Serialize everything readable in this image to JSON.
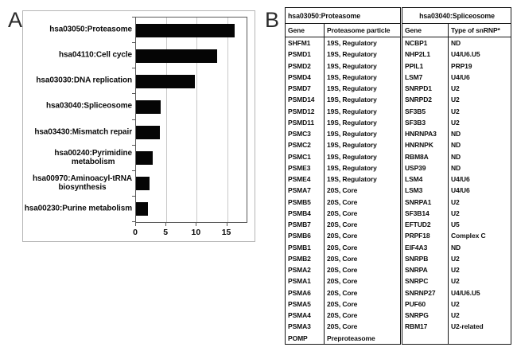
{
  "panelA": {
    "label": "A",
    "chart_data": {
      "type": "bar",
      "orientation": "horizontal",
      "title": "",
      "xlabel": "",
      "ylabel": "",
      "categories": [
        "hsa03050:Proteasome",
        "hsa04110:Cell cycle",
        "hsa03030:DNA replication",
        "hsa03040:Spliceosome",
        "hsa03430:Mismatch repair",
        "hsa00240:Pyrimidine\nmetabolism",
        "hsa00970:Aminoacyl-tRNA\nbiosynthesis",
        "hsa00230:Purine metabolism"
      ],
      "values": [
        16.2,
        13.4,
        9.7,
        4.1,
        3.9,
        2.8,
        2.2,
        2.0
      ],
      "xlim": [
        0,
        18.2
      ],
      "xticks": [
        0,
        5,
        10,
        15
      ],
      "bar_color": "#050505",
      "grid": true,
      "legend": "none"
    }
  },
  "panelB": {
    "label": "B",
    "proteasome_table": {
      "title": "hsa03050:Proteasome",
      "columns": [
        "Gene",
        "Proteasome particle"
      ],
      "rows": [
        [
          "SHFM1",
          "19S, Regulatory"
        ],
        [
          "PSMD1",
          "19S, Regulatory"
        ],
        [
          "PSMD2",
          "19S, Regulatory"
        ],
        [
          "PSMD4",
          "19S, Regulatory"
        ],
        [
          "PSMD7",
          "19S, Regulatory"
        ],
        [
          "PSMD14",
          "19S, Regulatory"
        ],
        [
          "PSMD12",
          "19S, Regulatory"
        ],
        [
          "PSMD11",
          "19S, Regulatory"
        ],
        [
          "PSMC3",
          "19S, Regulatory"
        ],
        [
          "PSMC2",
          "19S, Regulatory"
        ],
        [
          "PSMC1",
          "19S, Regulatory"
        ],
        [
          "PSME3",
          "19S, Regulatory"
        ],
        [
          "PSME4",
          "19S, Regulatory"
        ],
        [
          "PSMA7",
          "20S, Core"
        ],
        [
          "PSMB5",
          "20S, Core"
        ],
        [
          "PSMB4",
          "20S, Core"
        ],
        [
          "PSMB7",
          "20S, Core"
        ],
        [
          "PSMB6",
          "20S, Core"
        ],
        [
          "PSMB1",
          "20S, Core"
        ],
        [
          "PSMB2",
          "20S, Core"
        ],
        [
          "PSMA2",
          "20S, Core"
        ],
        [
          "PSMA1",
          "20S, Core"
        ],
        [
          "PSMA6",
          "20S, Core"
        ],
        [
          "PSMA5",
          "20S, Core"
        ],
        [
          "PSMA4",
          "20S, Core"
        ],
        [
          "PSMA3",
          "20S, Core"
        ],
        [
          "POMP",
          "Preproteasome"
        ]
      ]
    },
    "spliceosome_table": {
      "title": "hsa03040:Spliceosome",
      "columns": [
        "Gene",
        "Type of snRNP*"
      ],
      "rows": [
        [
          "NCBP1",
          "ND"
        ],
        [
          "NHP2L1",
          "U4/U6.U5"
        ],
        [
          "PPIL1",
          "PRP19"
        ],
        [
          "LSM7",
          "U4/U6"
        ],
        [
          "SNRPD1",
          "U2"
        ],
        [
          "SNRPD2",
          "U2"
        ],
        [
          "SF3B5",
          "U2"
        ],
        [
          "SF3B3",
          "U2"
        ],
        [
          "HNRNPA3",
          "ND"
        ],
        [
          "HNRNPK",
          "ND"
        ],
        [
          "RBM8A",
          "ND"
        ],
        [
          "USP39",
          "ND"
        ],
        [
          "LSM4",
          "U4/U6"
        ],
        [
          "LSM3",
          "U4/U6"
        ],
        [
          "SNRPA1",
          "U2"
        ],
        [
          "SF3B14",
          "U2"
        ],
        [
          "EFTUD2",
          "U5"
        ],
        [
          "PRPF18",
          "Complex C"
        ],
        [
          "EIF4A3",
          "ND"
        ],
        [
          "SNRPB",
          "U2"
        ],
        [
          "SNRPA",
          "U2"
        ],
        [
          "SNRPC",
          "U2"
        ],
        [
          "SNRNP27",
          "U4/U6.U5"
        ],
        [
          "PUF60",
          "U2"
        ],
        [
          "SNRPG",
          "U2"
        ],
        [
          "RBM17",
          "U2-related"
        ],
        [
          "",
          ""
        ]
      ]
    }
  }
}
